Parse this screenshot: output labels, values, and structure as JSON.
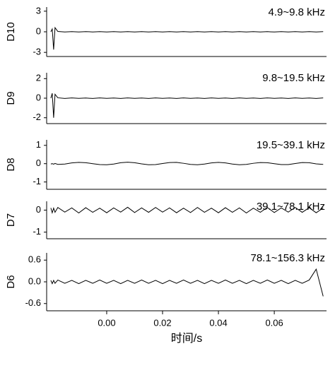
{
  "chart_data": [
    {
      "type": "line",
      "ylabel": "D10",
      "annotation": "4.9~9.8 kHz",
      "color": "#000000",
      "xlim": [
        -0.0215,
        0.0787
      ],
      "ylim": [
        -3.6,
        3.6
      ],
      "yticks": [
        -3,
        0,
        3
      ],
      "x": [
        -0.02,
        -0.0195,
        -0.019,
        -0.0185,
        -0.0175,
        -0.015,
        -0.0125,
        -0.01,
        -0.0075,
        -0.005,
        -0.0025,
        0,
        0.0025,
        0.005,
        0.0075,
        0.01,
        0.0125,
        0.015,
        0.0175,
        0.02,
        0.0225,
        0.025,
        0.0275,
        0.03,
        0.0325,
        0.035,
        0.0375,
        0.04,
        0.0425,
        0.045,
        0.0475,
        0.05,
        0.0525,
        0.055,
        0.0575,
        0.06,
        0.0625,
        0.065,
        0.0675,
        0.07,
        0.0725,
        0.075,
        0.0775
      ],
      "series": [
        {
          "values": [
            0,
            0.4,
            -2.6,
            0.6,
            0.05,
            -0.03,
            0.02,
            -0.02,
            0.03,
            -0.02,
            0.02,
            -0.03,
            0.02,
            -0.02,
            0.03,
            -0.02,
            0.02,
            -0.03,
            0.02,
            -0.02,
            0.03,
            -0.02,
            0.02,
            -0.03,
            0.02,
            -0.02,
            0.03,
            -0.02,
            0.02,
            -0.03,
            0.02,
            -0.02,
            0.03,
            -0.02,
            0.02,
            -0.03,
            0.02,
            -0.02,
            0.03,
            -0.02,
            0.02,
            -0.03,
            0.02
          ]
        }
      ]
    },
    {
      "type": "line",
      "ylabel": "D9",
      "annotation": "9.8~19.5 kHz",
      "color": "#000000",
      "xlim": [
        -0.0215,
        0.0787
      ],
      "ylim": [
        -2.6,
        2.6
      ],
      "yticks": [
        -2,
        0,
        2
      ],
      "x": [
        -0.02,
        -0.0195,
        -0.019,
        -0.0185,
        -0.0175,
        -0.015,
        -0.0125,
        -0.01,
        -0.0075,
        -0.005,
        -0.0025,
        0,
        0.0025,
        0.005,
        0.0075,
        0.01,
        0.0125,
        0.015,
        0.0175,
        0.02,
        0.0225,
        0.025,
        0.0275,
        0.03,
        0.0325,
        0.035,
        0.0375,
        0.04,
        0.0425,
        0.045,
        0.0475,
        0.05,
        0.0525,
        0.055,
        0.0575,
        0.06,
        0.0625,
        0.065,
        0.0675,
        0.07,
        0.0725,
        0.075,
        0.0775
      ],
      "series": [
        {
          "values": [
            0,
            0.5,
            -2,
            0.4,
            0.04,
            -0.03,
            0.03,
            -0.02,
            0.02,
            -0.03,
            0.03,
            -0.02,
            0.02,
            -0.03,
            0.03,
            -0.02,
            0.02,
            -0.03,
            0.03,
            -0.02,
            0.02,
            -0.03,
            0.03,
            -0.02,
            0.02,
            -0.03,
            0.03,
            -0.02,
            0.02,
            -0.03,
            0.03,
            -0.02,
            0.02,
            -0.03,
            0.03,
            -0.02,
            0.02,
            -0.03,
            0.03,
            -0.02,
            0.02,
            -0.03,
            0.03
          ]
        }
      ]
    },
    {
      "type": "line",
      "ylabel": "D8",
      "annotation": "19.5~39.1 kHz",
      "color": "#000000",
      "xlim": [
        -0.0215,
        0.0787
      ],
      "ylim": [
        -1.4,
        1.3
      ],
      "yticks": [
        -1,
        0,
        1
      ],
      "x": [
        -0.02,
        -0.0195,
        -0.019,
        -0.0185,
        -0.0175,
        -0.015,
        -0.0125,
        -0.01,
        -0.0075,
        -0.005,
        -0.0025,
        0,
        0.0025,
        0.005,
        0.0075,
        0.01,
        0.0125,
        0.015,
        0.0175,
        0.02,
        0.0225,
        0.025,
        0.0275,
        0.03,
        0.0325,
        0.035,
        0.0375,
        0.04,
        0.0425,
        0.045,
        0.0475,
        0.05,
        0.0525,
        0.055,
        0.0575,
        0.06,
        0.0625,
        0.065,
        0.0675,
        0.07,
        0.0725,
        0.075,
        0.0775
      ],
      "series": [
        {
          "values": [
            -0.02,
            0,
            -0.03,
            0.01,
            -0.04,
            -0.02,
            0.04,
            0.07,
            0.05,
            0,
            -0.05,
            -0.06,
            -0.02,
            0.05,
            0.08,
            0.05,
            -0.01,
            -0.06,
            -0.05,
            0.01,
            0.06,
            0.07,
            0.02,
            -0.04,
            -0.06,
            -0.02,
            0.04,
            0.07,
            0.04,
            -0.02,
            -0.06,
            -0.04,
            0.02,
            0.06,
            0.05,
            0,
            -0.05,
            -0.05,
            0.01,
            0.06,
            0.05,
            -0.01,
            -0.04
          ]
        }
      ]
    },
    {
      "type": "line",
      "ylabel": "D7",
      "annotation": "39.1~78.1 kHz",
      "color": "#000000",
      "xlim": [
        -0.0215,
        0.0787
      ],
      "ylim": [
        -1.3,
        0.4
      ],
      "yticks": [
        -1,
        0
      ],
      "x": [
        -0.02,
        -0.0195,
        -0.019,
        -0.0185,
        -0.0175,
        -0.015,
        -0.0125,
        -0.01,
        -0.0075,
        -0.005,
        -0.0025,
        0,
        0.0025,
        0.005,
        0.0075,
        0.01,
        0.0125,
        0.015,
        0.0175,
        0.02,
        0.0225,
        0.025,
        0.0275,
        0.03,
        0.0325,
        0.035,
        0.0375,
        0.04,
        0.0425,
        0.045,
        0.0475,
        0.05,
        0.0525,
        0.055,
        0.0575,
        0.06,
        0.0625,
        0.065,
        0.0675,
        0.07,
        0.0725,
        0.075,
        0.0775
      ],
      "series": [
        {
          "values": [
            0.1,
            -0.12,
            0.09,
            -0.1,
            0.12,
            -0.09,
            0.1,
            -0.13,
            0.11,
            -0.1,
            0.09,
            -0.12,
            0.1,
            -0.09,
            0.13,
            -0.11,
            0.1,
            -0.1,
            0.12,
            -0.09,
            0.1,
            -0.12,
            0.09,
            -0.11,
            0.12,
            -0.1,
            0.09,
            -0.12,
            0.11,
            -0.1,
            0.1,
            -0.13,
            0.09,
            -0.1,
            0.12,
            -0.11,
            0.1,
            -0.09,
            0.12,
            -0.1,
            0.11,
            -0.12,
            0.1
          ]
        }
      ]
    },
    {
      "type": "line",
      "ylabel": "D6",
      "annotation": "78.1~156.3 kHz",
      "color": "#000000",
      "xlabel": "时间/s",
      "xlim": [
        -0.0215,
        0.0787
      ],
      "ylim": [
        -0.8,
        0.8
      ],
      "yticks": [
        -0.6,
        {
          "value": 0,
          "label": "0.0"
        },
        0.6
      ],
      "xticks": [
        {
          "value": 0,
          "label": "0.00"
        },
        0.02,
        0.04,
        0.06
      ],
      "x": [
        -0.02,
        -0.0195,
        -0.019,
        -0.0185,
        -0.0175,
        -0.015,
        -0.0125,
        -0.01,
        -0.0075,
        -0.005,
        -0.0025,
        0,
        0.0025,
        0.005,
        0.0075,
        0.01,
        0.0125,
        0.015,
        0.0175,
        0.02,
        0.0225,
        0.025,
        0.0275,
        0.03,
        0.0325,
        0.035,
        0.0375,
        0.04,
        0.0425,
        0.045,
        0.0475,
        0.05,
        0.0525,
        0.055,
        0.0575,
        0.06,
        0.0625,
        0.065,
        0.0675,
        0.07,
        0.0725,
        0.075,
        0.0775
      ],
      "series": [
        {
          "values": [
            0.04,
            -0.05,
            0.04,
            -0.04,
            0.05,
            -0.04,
            0.04,
            -0.05,
            0.04,
            -0.04,
            0.05,
            -0.04,
            0.04,
            -0.05,
            0.04,
            -0.04,
            0.05,
            -0.04,
            0.04,
            -0.05,
            0.04,
            -0.04,
            0.05,
            -0.04,
            0.04,
            -0.05,
            0.04,
            -0.04,
            0.05,
            -0.04,
            0.04,
            -0.05,
            0.04,
            -0.04,
            0.05,
            -0.04,
            0.04,
            -0.05,
            0.04,
            -0.04,
            0.05,
            0.35,
            -0.4
          ]
        }
      ]
    }
  ]
}
